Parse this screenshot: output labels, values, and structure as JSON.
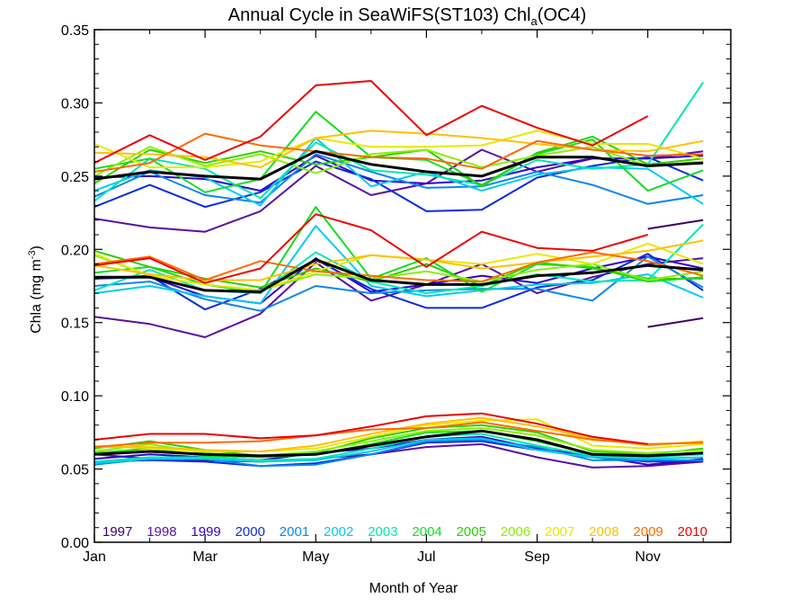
{
  "chart_data": {
    "type": "line",
    "title": "Annual Cycle in SeaWiFS(ST103) Chl",
    "title_sub": "a",
    "title_tail": "(OC4)",
    "xlabel": "Month of Year",
    "ylabel_main": "Chla (mg m",
    "ylabel_sup": "-3",
    "ylabel_close": ")",
    "xlim": [
      1,
      12.5
    ],
    "ylim": [
      0,
      0.35
    ],
    "x_ticks": [
      {
        "x": 1,
        "label": "Jan"
      },
      {
        "x": 3,
        "label": "Mar"
      },
      {
        "x": 5,
        "label": "May"
      },
      {
        "x": 7,
        "label": "Jul"
      },
      {
        "x": 9,
        "label": "Sep"
      },
      {
        "x": 11,
        "label": "Nov"
      }
    ],
    "y_ticks": [
      "0.00",
      "0.05",
      "0.10",
      "0.15",
      "0.20",
      "0.25",
      "0.30",
      "0.35"
    ],
    "legend_placement": "bottom-inside",
    "series": [
      {
        "name": "1997",
        "color": "#3a0066",
        "upper": [
          null,
          null,
          null,
          null,
          null,
          null,
          null,
          null,
          null,
          null,
          0.214,
          0.22
        ],
        "mid": [
          null,
          null,
          null,
          null,
          null,
          null,
          null,
          null,
          null,
          null,
          0.147,
          0.153
        ],
        "low": [
          null,
          null,
          null,
          null,
          null,
          null,
          null,
          null,
          null,
          null,
          0.052,
          0.056
        ]
      },
      {
        "name": "1998",
        "color": "#5a0fa0",
        "upper": [
          0.221,
          0.215,
          0.212,
          0.226,
          0.257,
          0.237,
          0.245,
          0.268,
          0.253,
          0.262,
          0.262,
          0.267
        ],
        "mid": [
          0.154,
          0.149,
          0.14,
          0.156,
          0.191,
          0.165,
          0.176,
          0.19,
          0.17,
          0.181,
          0.19,
          0.194
        ],
        "low": [
          0.06,
          0.057,
          0.056,
          0.055,
          0.057,
          0.06,
          0.065,
          0.067,
          0.058,
          0.051,
          0.052,
          0.055
        ]
      },
      {
        "name": "1999",
        "color": "#3300cc",
        "upper": [
          0.249,
          0.25,
          0.248,
          0.24,
          0.264,
          0.247,
          0.245,
          0.247,
          0.256,
          0.262,
          0.262,
          0.264
        ],
        "mid": [
          0.18,
          0.181,
          0.168,
          0.163,
          0.194,
          0.171,
          0.176,
          0.182,
          0.177,
          0.187,
          0.195,
          0.187
        ],
        "low": [
          0.057,
          0.06,
          0.058,
          0.056,
          0.061,
          0.064,
          0.07,
          0.072,
          0.064,
          0.059,
          0.053,
          0.057
        ]
      },
      {
        "name": "2000",
        "color": "#0a2bdc",
        "upper": [
          0.229,
          0.244,
          0.229,
          0.239,
          0.26,
          0.248,
          0.226,
          0.227,
          0.249,
          0.257,
          0.263,
          0.247
        ],
        "mid": [
          0.18,
          0.182,
          0.159,
          0.173,
          0.193,
          0.173,
          0.16,
          0.16,
          0.174,
          0.179,
          0.197,
          0.172
        ],
        "low": [
          0.055,
          0.056,
          0.055,
          0.052,
          0.054,
          0.06,
          0.068,
          0.069,
          0.063,
          0.058,
          0.055,
          0.056
        ]
      },
      {
        "name": "2001",
        "color": "#0b86ee",
        "upper": [
          0.236,
          0.253,
          0.237,
          0.232,
          0.265,
          0.253,
          0.242,
          0.243,
          0.253,
          0.244,
          0.231,
          0.237
        ],
        "mid": [
          0.175,
          0.178,
          0.166,
          0.158,
          0.175,
          0.17,
          0.172,
          0.173,
          0.173,
          0.165,
          0.195,
          0.174
        ],
        "low": [
          0.053,
          0.057,
          0.057,
          0.052,
          0.053,
          0.06,
          0.069,
          0.07,
          0.065,
          0.056,
          0.056,
          0.056
        ]
      },
      {
        "name": "2002",
        "color": "#00ccee",
        "upper": [
          0.24,
          0.254,
          0.249,
          0.23,
          0.276,
          0.243,
          0.253,
          0.24,
          0.251,
          0.256,
          0.255,
          0.231
        ],
        "mid": [
          0.17,
          0.175,
          0.168,
          0.163,
          0.216,
          0.175,
          0.168,
          0.172,
          0.176,
          0.177,
          0.183,
          0.167
        ],
        "low": [
          0.054,
          0.057,
          0.057,
          0.055,
          0.056,
          0.062,
          0.07,
          0.071,
          0.063,
          0.058,
          0.057,
          0.058
        ]
      },
      {
        "name": "2003",
        "color": "#00e8b0",
        "upper": [
          0.233,
          0.262,
          0.255,
          0.235,
          0.273,
          0.254,
          0.251,
          0.244,
          0.261,
          0.255,
          0.258,
          0.314
        ],
        "mid": [
          0.172,
          0.186,
          0.172,
          0.17,
          0.198,
          0.178,
          0.17,
          0.175,
          0.183,
          0.178,
          0.179,
          0.217
        ],
        "low": [
          0.055,
          0.058,
          0.058,
          0.056,
          0.057,
          0.064,
          0.072,
          0.074,
          0.066,
          0.059,
          0.058,
          0.06
        ]
      },
      {
        "name": "2004",
        "color": "#10e020",
        "upper": [
          0.255,
          0.262,
          0.239,
          0.248,
          0.294,
          0.263,
          0.261,
          0.244,
          0.265,
          0.275,
          0.24,
          0.254
        ],
        "mid": [
          0.184,
          0.188,
          0.176,
          0.17,
          0.229,
          0.18,
          0.194,
          0.171,
          0.19,
          0.188,
          0.178,
          0.181
        ],
        "low": [
          0.061,
          0.064,
          0.059,
          0.058,
          0.06,
          0.067,
          0.075,
          0.076,
          0.069,
          0.06,
          0.059,
          0.061
        ]
      },
      {
        "name": "2005",
        "color": "#2cd000",
        "upper": [
          0.245,
          0.268,
          0.259,
          0.267,
          0.258,
          0.263,
          0.268,
          0.243,
          0.266,
          0.277,
          0.258,
          0.262
        ],
        "mid": [
          0.199,
          0.188,
          0.18,
          0.174,
          0.187,
          0.178,
          0.19,
          0.175,
          0.191,
          0.187,
          0.18,
          0.18
        ],
        "low": [
          0.064,
          0.069,
          0.063,
          0.059,
          0.061,
          0.071,
          0.078,
          0.08,
          0.075,
          0.062,
          0.06,
          0.064
        ]
      },
      {
        "name": "2006",
        "color": "#88f000",
        "upper": [
          0.25,
          0.27,
          0.257,
          0.265,
          0.252,
          0.265,
          0.268,
          0.256,
          0.264,
          0.27,
          0.257,
          0.26
        ],
        "mid": [
          0.196,
          0.182,
          0.176,
          0.172,
          0.183,
          0.18,
          0.185,
          0.178,
          0.186,
          0.19,
          0.179,
          0.185
        ],
        "low": [
          0.062,
          0.067,
          0.061,
          0.059,
          0.062,
          0.069,
          0.076,
          0.078,
          0.073,
          0.063,
          0.061,
          0.063
        ]
      },
      {
        "name": "2007",
        "color": "#e8e800",
        "upper": [
          0.272,
          0.256,
          0.256,
          0.26,
          0.276,
          0.27,
          0.27,
          0.271,
          0.281,
          0.272,
          0.272,
          0.262
        ],
        "mid": [
          0.197,
          0.182,
          0.176,
          0.172,
          0.185,
          0.196,
          0.193,
          0.19,
          0.197,
          0.19,
          0.204,
          0.19
        ],
        "low": [
          0.066,
          0.064,
          0.062,
          0.062,
          0.064,
          0.072,
          0.08,
          0.083,
          0.084,
          0.066,
          0.064,
          0.067
        ]
      },
      {
        "name": "2008",
        "color": "#ffc000",
        "upper": [
          0.266,
          0.265,
          0.263,
          0.256,
          0.276,
          0.281,
          0.279,
          0.276,
          0.272,
          0.268,
          0.267,
          0.274
        ],
        "mid": [
          0.189,
          0.183,
          0.179,
          0.179,
          0.19,
          0.196,
          0.193,
          0.187,
          0.191,
          0.195,
          0.199,
          0.206
        ],
        "low": [
          0.065,
          0.065,
          0.063,
          0.062,
          0.066,
          0.074,
          0.081,
          0.085,
          0.079,
          0.071,
          0.066,
          0.069
        ]
      },
      {
        "name": "2009",
        "color": "#ff6a00",
        "upper": [
          0.253,
          0.259,
          0.279,
          0.271,
          0.267,
          0.263,
          0.262,
          0.255,
          0.274,
          0.268,
          0.264,
          0.265
        ],
        "mid": [
          0.19,
          0.195,
          0.179,
          0.192,
          0.185,
          0.182,
          0.179,
          0.178,
          0.191,
          0.198,
          0.192,
          0.182
        ],
        "low": [
          0.065,
          0.068,
          0.068,
          0.069,
          0.073,
          0.077,
          0.078,
          0.082,
          0.076,
          0.07,
          0.067,
          0.068
        ]
      },
      {
        "name": "2010",
        "color": "#ee0000",
        "upper": [
          0.259,
          0.278,
          0.261,
          0.277,
          0.312,
          0.315,
          0.278,
          0.298,
          0.283,
          0.271,
          0.291,
          null
        ],
        "mid": [
          0.189,
          0.194,
          0.177,
          0.187,
          0.224,
          0.213,
          0.188,
          0.212,
          0.201,
          0.199,
          0.21,
          null
        ],
        "low": [
          0.07,
          0.074,
          0.074,
          0.071,
          0.073,
          0.079,
          0.086,
          0.088,
          0.081,
          0.072,
          0.067,
          null
        ]
      },
      {
        "name": "mean",
        "color": "#000000",
        "is_mean": true,
        "upper": [
          0.248,
          0.253,
          0.25,
          0.248,
          0.267,
          0.258,
          0.253,
          0.25,
          0.263,
          0.263,
          0.257,
          0.259
        ],
        "mid": [
          0.181,
          0.181,
          0.172,
          0.171,
          0.193,
          0.179,
          0.176,
          0.176,
          0.182,
          0.184,
          0.189,
          0.186
        ],
        "low": [
          0.06,
          0.062,
          0.06,
          0.059,
          0.06,
          0.066,
          0.072,
          0.076,
          0.07,
          0.06,
          0.059,
          0.061
        ]
      }
    ]
  }
}
